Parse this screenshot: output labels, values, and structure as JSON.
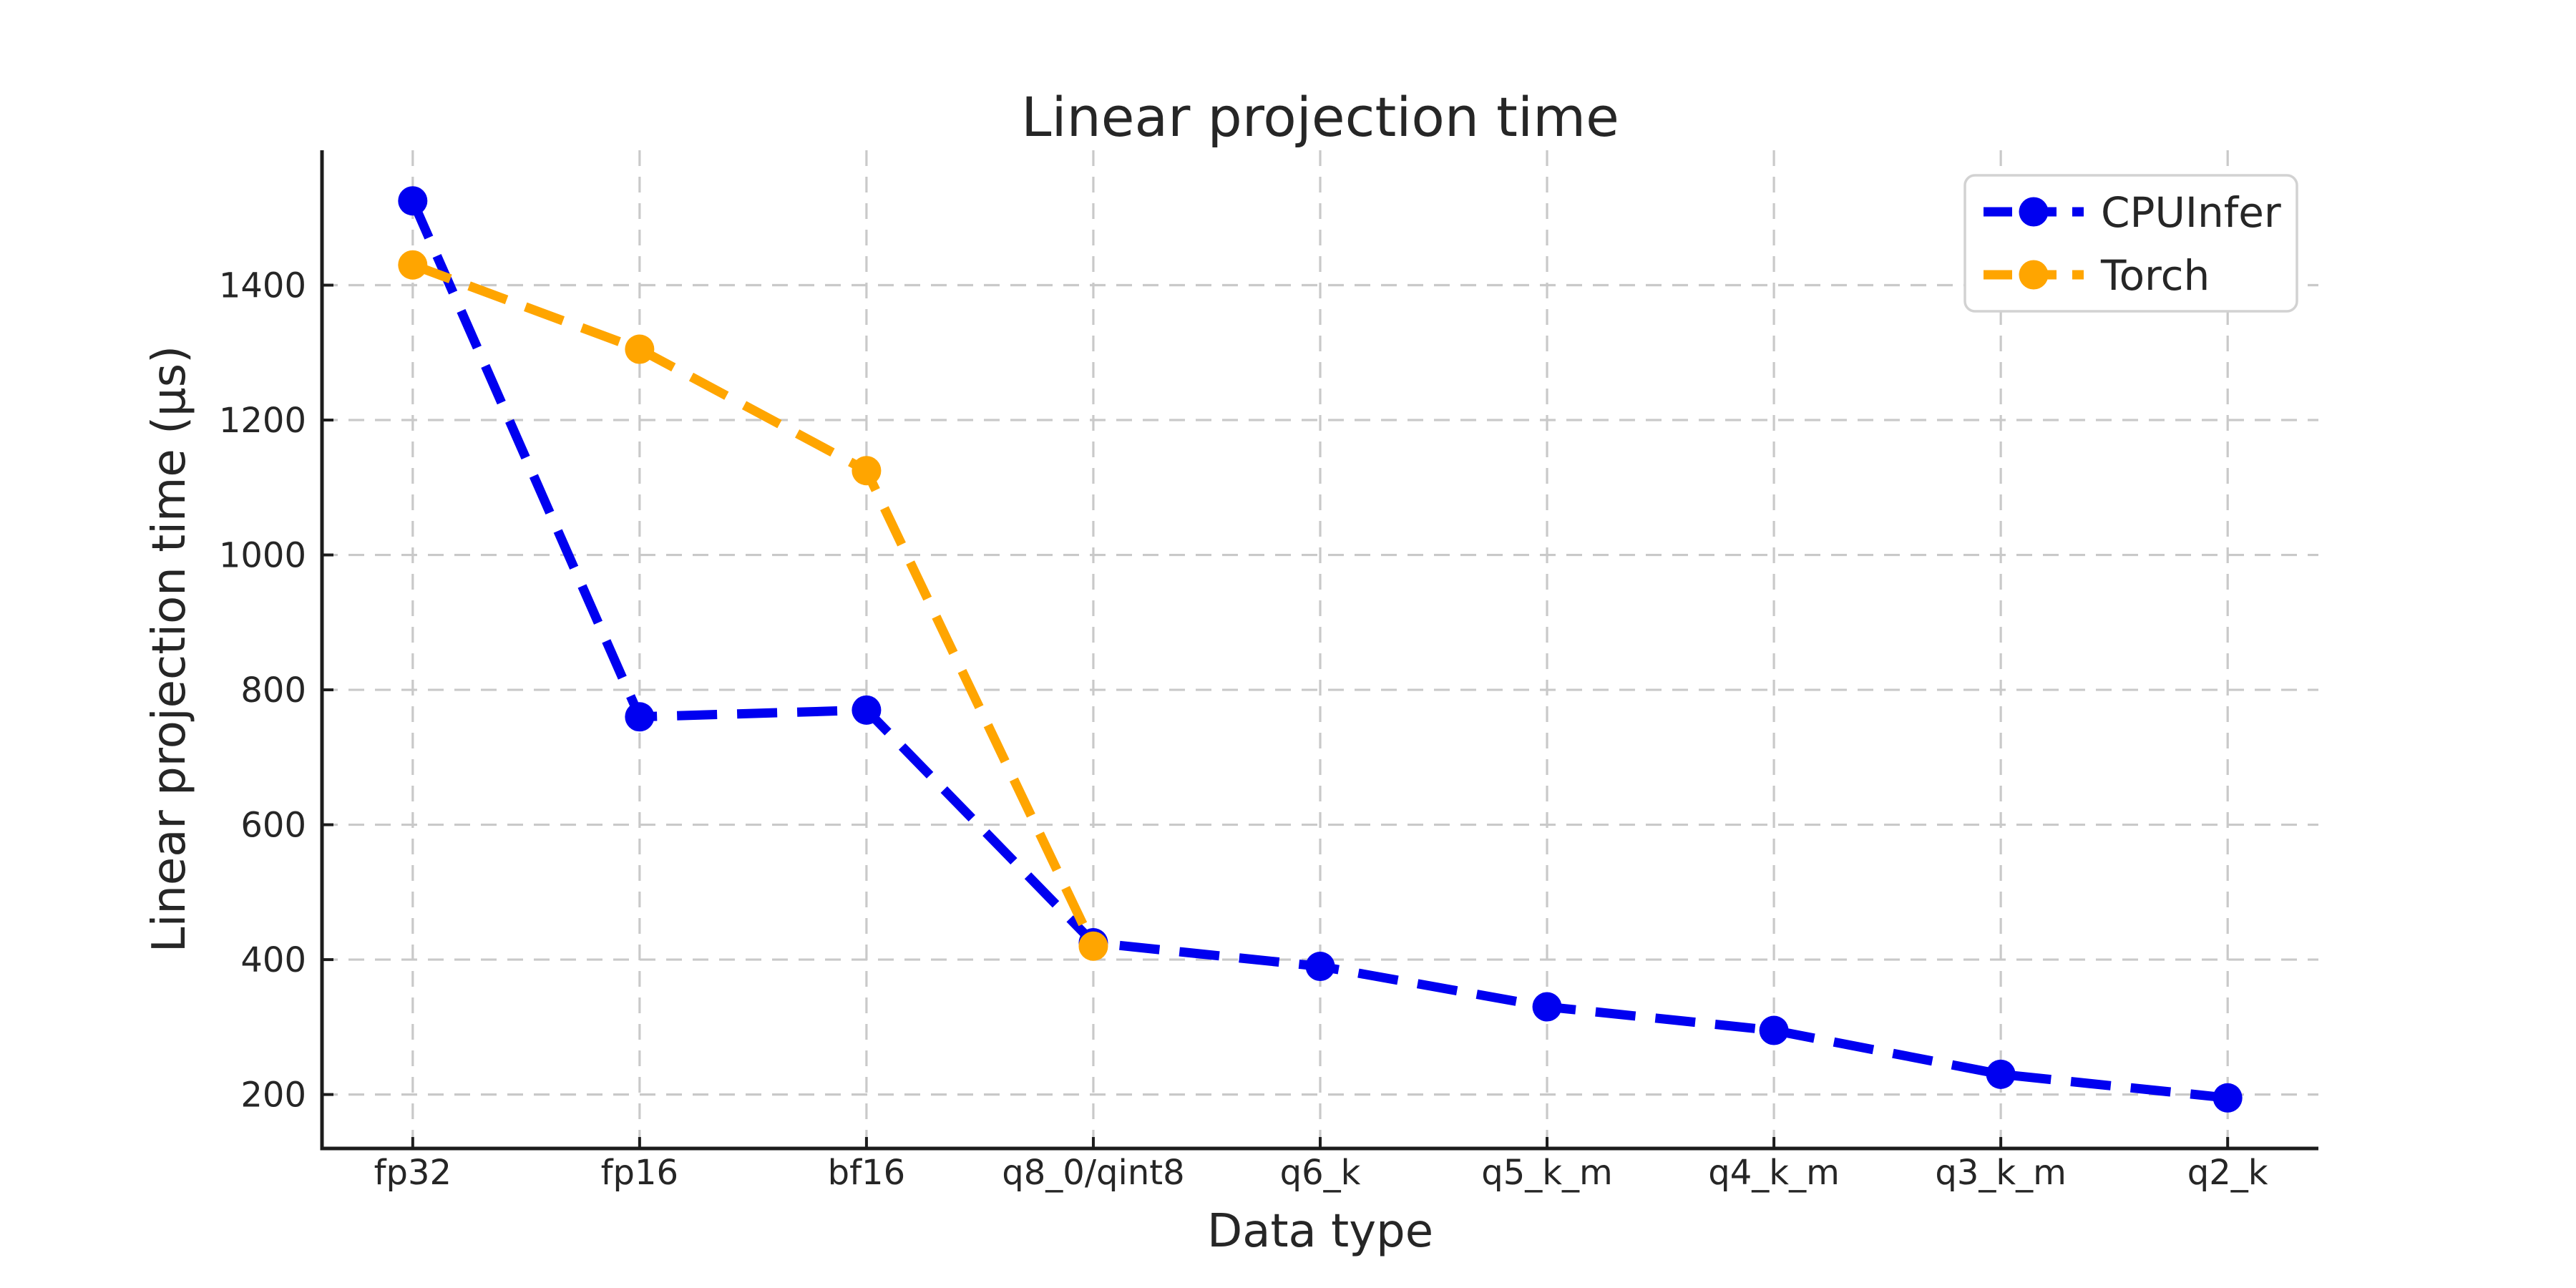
{
  "chart_data": {
    "type": "line",
    "title": "Linear projection time",
    "xlabel": "Data type",
    "ylabel": "Linear projection time (µs)",
    "categories": [
      "fp32",
      "fp16",
      "bf16",
      "q8_0/qint8",
      "q6_k",
      "q5_k_m",
      "q4_k_m",
      "q3_k_m",
      "q2_k"
    ],
    "series": [
      {
        "name": "CPUInfer",
        "color": "#0000f0",
        "line_style": "dashed",
        "marker": "circle",
        "values": [
          1525,
          760,
          770,
          425,
          390,
          330,
          295,
          230,
          195
        ]
      },
      {
        "name": "Torch",
        "color": "#ffa500",
        "line_style": "dashed",
        "marker": "circle",
        "values": [
          1430,
          1305,
          1125,
          420,
          null,
          null,
          null,
          null,
          null
        ]
      }
    ],
    "yticks": [
      200,
      400,
      600,
      800,
      1000,
      1200,
      1400
    ],
    "ylim": [
      120,
      1600
    ],
    "grid": true,
    "grid_style": "dashed",
    "legend_position": "upper right",
    "legend_entries": [
      "CPUInfer",
      "Torch"
    ],
    "colors": {
      "background": "#ffffff",
      "text": "#262626",
      "grid": "#c9c9c9",
      "spine": "#1c1c1c",
      "legend_border": "#d2d2d2"
    }
  }
}
